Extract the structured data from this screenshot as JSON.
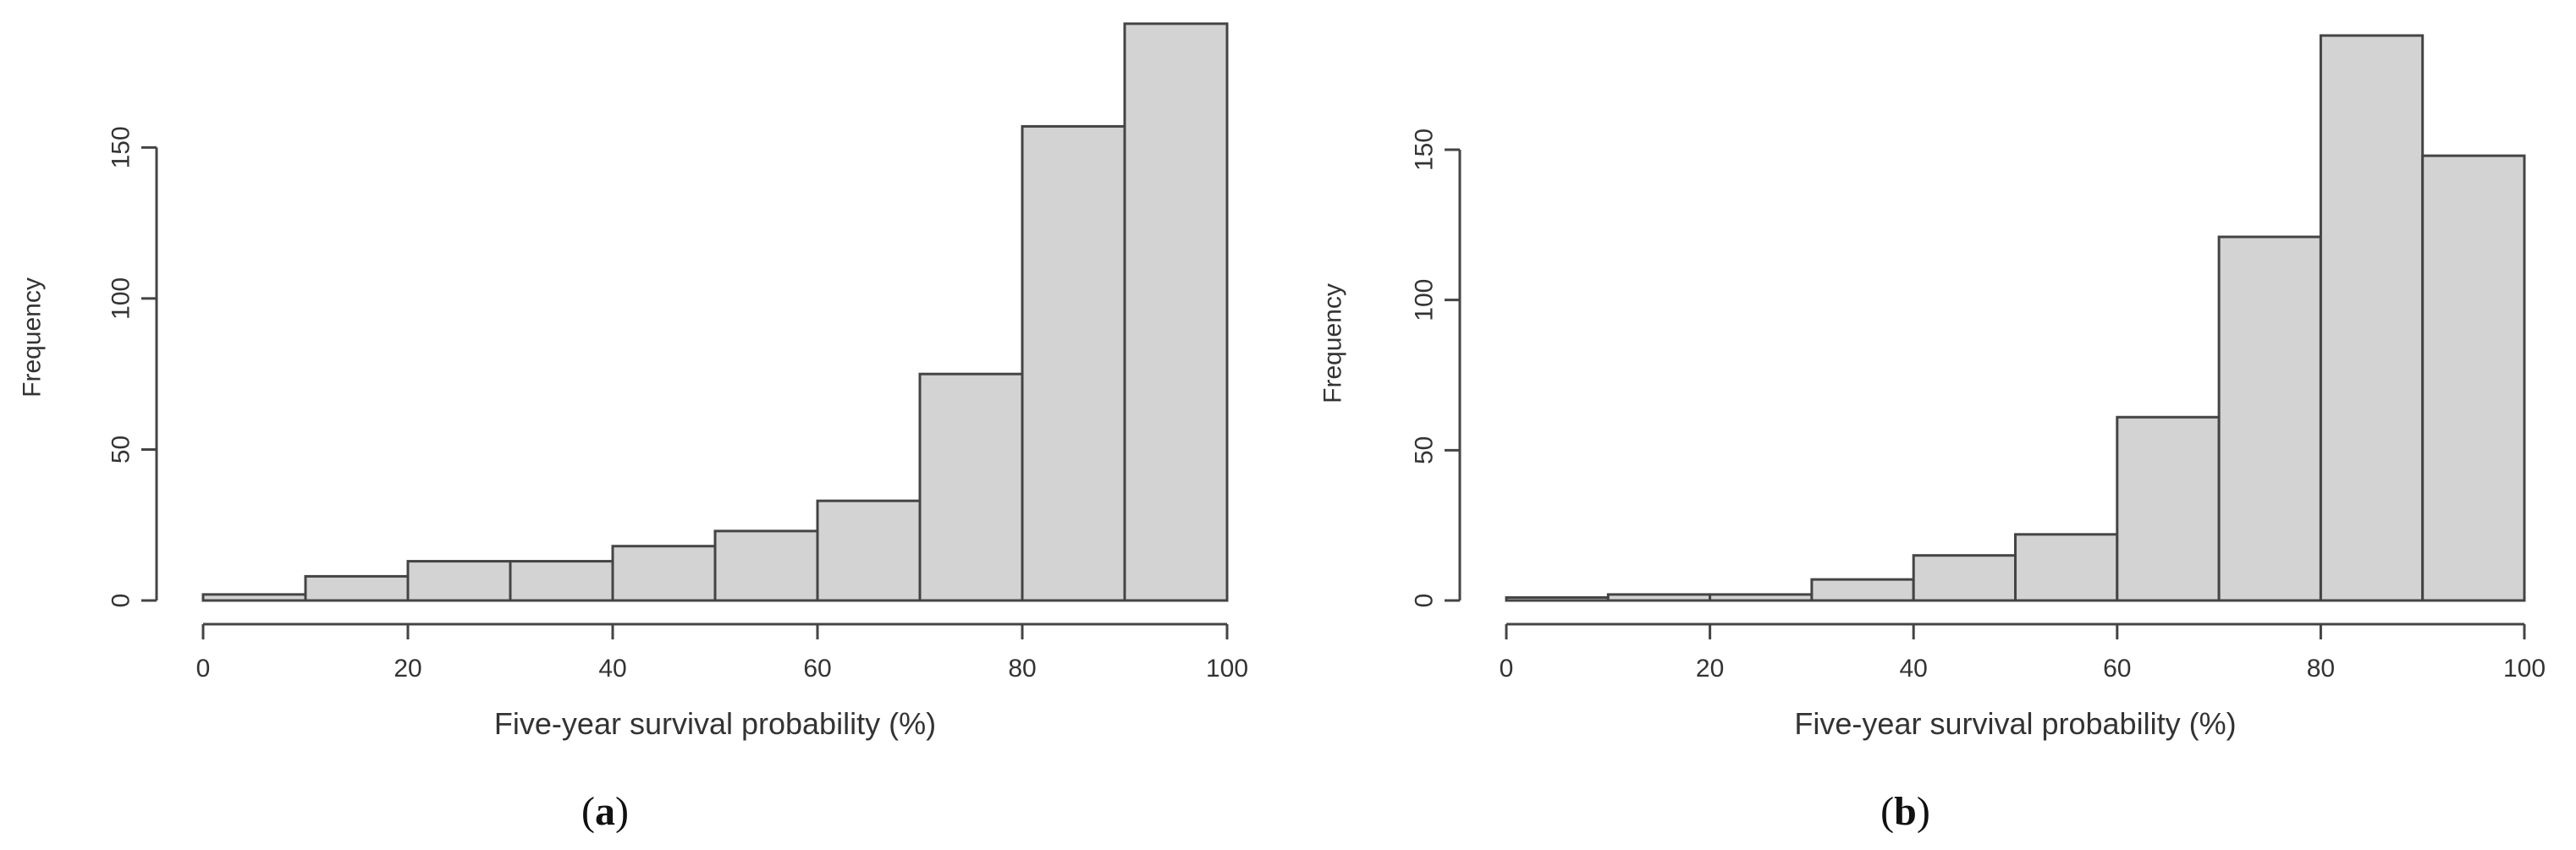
{
  "chart_data": [
    {
      "type": "bar",
      "panel_label": "(a)",
      "panel_letter": "a",
      "xlabel": "Five-year survival probability (%)",
      "ylabel": "Frequency",
      "bins": [
        [
          0,
          10
        ],
        [
          10,
          20
        ],
        [
          20,
          30
        ],
        [
          30,
          40
        ],
        [
          40,
          50
        ],
        [
          50,
          60
        ],
        [
          60,
          70
        ],
        [
          70,
          80
        ],
        [
          80,
          90
        ],
        [
          90,
          100
        ]
      ],
      "values": [
        2,
        8,
        13,
        13,
        18,
        23,
        33,
        75,
        157,
        191
      ],
      "xlim": [
        0,
        100
      ],
      "ylim": [
        0,
        191
      ],
      "x_ticks": [
        "0",
        "20",
        "40",
        "60",
        "80",
        "100"
      ],
      "y_ticks": [
        "0",
        "50",
        "100",
        "150"
      ],
      "bar_color": "#d3d3d3",
      "edge_color": "#444444",
      "grid": false
    },
    {
      "type": "bar",
      "panel_label": "(b)",
      "panel_letter": "b",
      "xlabel": "Five-year survival probability (%)",
      "ylabel": "Frequency",
      "bins": [
        [
          0,
          10
        ],
        [
          10,
          20
        ],
        [
          20,
          30
        ],
        [
          30,
          40
        ],
        [
          40,
          50
        ],
        [
          50,
          60
        ],
        [
          60,
          70
        ],
        [
          70,
          80
        ],
        [
          80,
          90
        ],
        [
          90,
          100
        ]
      ],
      "values": [
        1,
        2,
        2,
        7,
        15,
        22,
        61,
        121,
        188,
        148
      ],
      "xlim": [
        0,
        100
      ],
      "ylim": [
        0,
        188
      ],
      "x_ticks": [
        "0",
        "20",
        "40",
        "60",
        "80",
        "100"
      ],
      "y_ticks": [
        "0",
        "50",
        "100",
        "150"
      ],
      "bar_color": "#d3d3d3",
      "edge_color": "#444444",
      "grid": false
    }
  ]
}
